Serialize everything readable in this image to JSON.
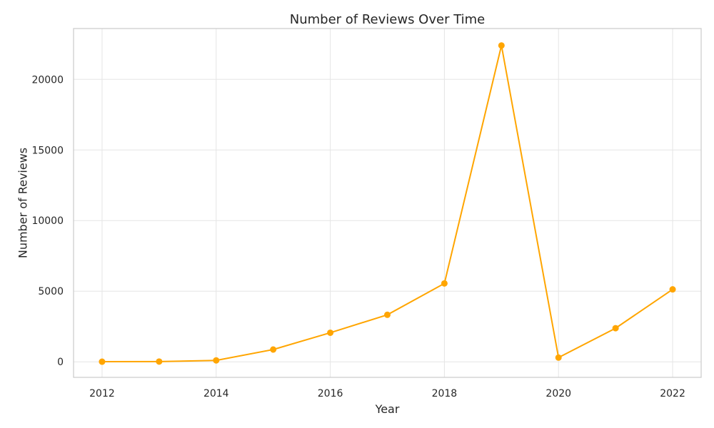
{
  "chart_data": {
    "type": "line",
    "title": "Number of Reviews Over Time",
    "xlabel": "Year",
    "ylabel": "Number of Reviews",
    "x": [
      2012,
      2013,
      2014,
      2015,
      2016,
      2017,
      2018,
      2019,
      2020,
      2021,
      2022
    ],
    "series": [
      {
        "values": [
          10,
          20,
          100,
          870,
          2060,
          3330,
          5550,
          22400,
          300,
          2380,
          5130
        ],
        "color": "#ffa500"
      }
    ],
    "xlim": [
      2011.5,
      2022.5
    ],
    "ylim": [
      -1100,
      23600
    ],
    "xticks": [
      2012,
      2014,
      2016,
      2018,
      2020,
      2022
    ],
    "yticks": [
      0,
      5000,
      10000,
      15000,
      20000
    ],
    "grid": true,
    "marker": "circle"
  }
}
